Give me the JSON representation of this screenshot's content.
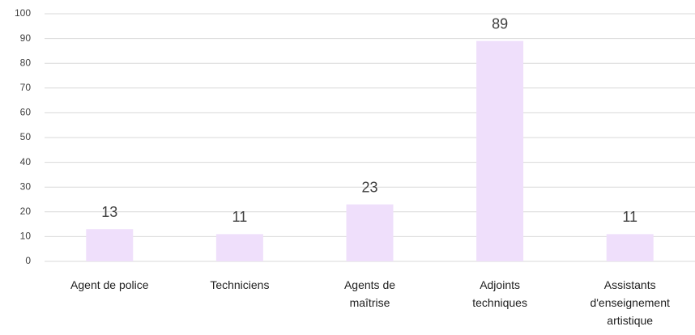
{
  "chart_data": {
    "type": "bar",
    "categories": [
      "Agent de police",
      "Techniciens",
      "Agents de maîtrise",
      "Adjoints techniques",
      "Assistants d'enseignement artistique"
    ],
    "values": [
      13,
      11,
      23,
      89,
      11
    ],
    "color": "#efdffb",
    "ylim": [
      0,
      100
    ],
    "yticks": [
      0,
      10,
      20,
      30,
      40,
      50,
      60,
      70,
      80,
      90,
      100
    ],
    "grid": true
  }
}
